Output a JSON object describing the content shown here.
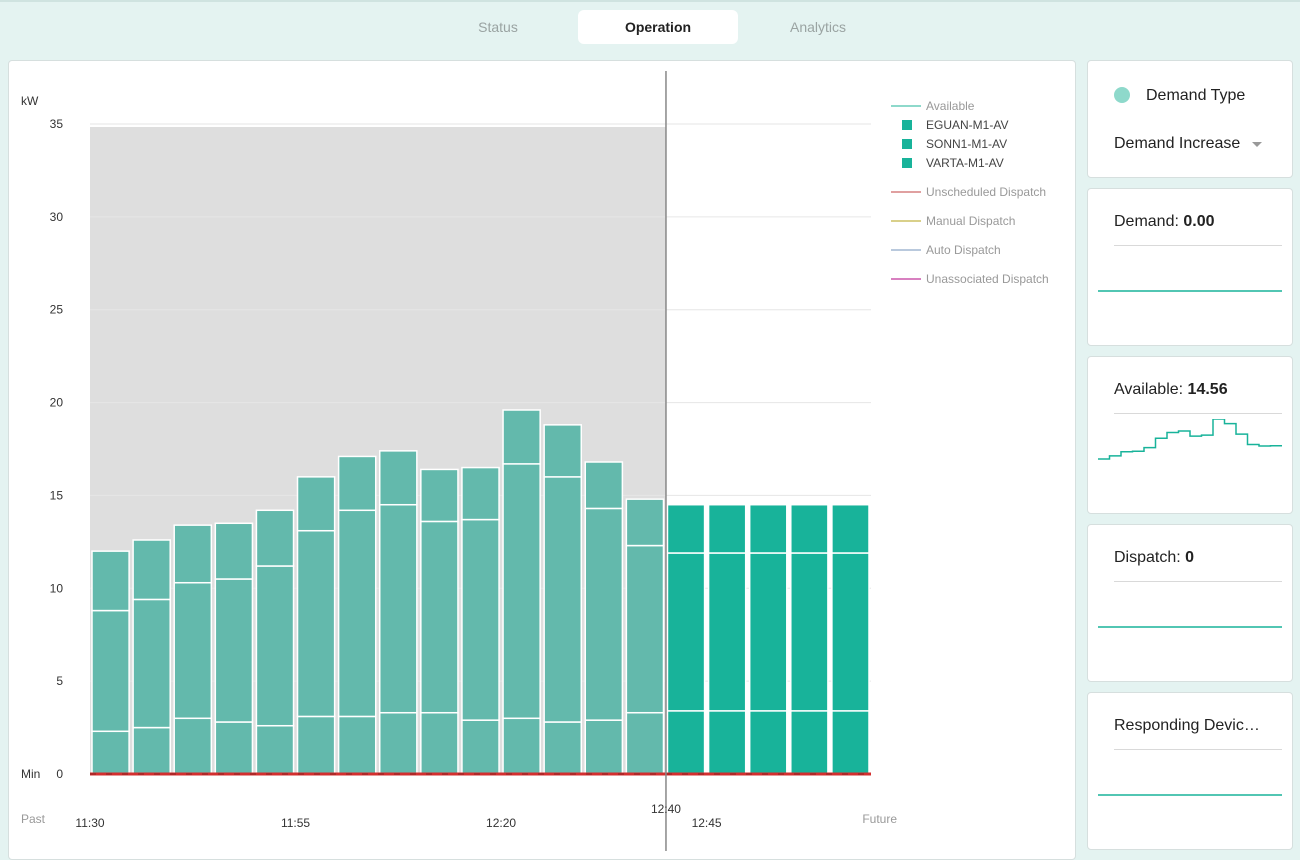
{
  "tabs": [
    {
      "label": "Status"
    },
    {
      "label": "Operation"
    },
    {
      "label": "Analytics"
    }
  ],
  "active_tab": "Operation",
  "chart_data": {
    "type": "bar",
    "stacked": true,
    "ylabel": "kW",
    "ylim": [
      0,
      35
    ],
    "yticks": [
      0,
      5,
      10,
      15,
      20,
      25,
      30,
      35
    ],
    "min_label": "Min",
    "x_labels": [
      "11:30",
      "11:55",
      "12:20",
      "12:40",
      "12:45"
    ],
    "past_label": "Past",
    "future_label": "Future",
    "now_time": "12:40",
    "grid": true,
    "legend_position": "right",
    "legend": [
      {
        "label": "Available",
        "kind": "line",
        "color": "#8ed9cb"
      },
      {
        "label": "EGUAN-M1-AV",
        "kind": "square",
        "color": "#18b39a"
      },
      {
        "label": "SONN1-M1-AV",
        "kind": "square",
        "color": "#18b39a"
      },
      {
        "label": "VARTA-M1-AV",
        "kind": "square",
        "color": "#18b39a"
      },
      {
        "label": "Unscheduled Dispatch",
        "kind": "line",
        "color": "#e0a0a0"
      },
      {
        "label": "Manual Dispatch",
        "kind": "line",
        "color": "#d9d08a"
      },
      {
        "label": "Auto Dispatch",
        "kind": "line",
        "color": "#b9c9dd"
      },
      {
        "label": "Unassociated Dispatch",
        "kind": "line",
        "color": "#d880c0"
      }
    ],
    "past_series_color": "#63b9ac",
    "future_series_color": "#18b39a",
    "past_shade_color": "#dedede",
    "dispatch_line_color": "#d32f2f",
    "series_order": [
      "EGUAN-M1-AV",
      "SONN1-M1-AV",
      "VARTA-M1-AV"
    ],
    "bars": [
      {
        "period": "past",
        "segments": [
          2.3,
          6.5,
          3.2
        ]
      },
      {
        "period": "past",
        "segments": [
          2.5,
          6.9,
          3.2
        ]
      },
      {
        "period": "past",
        "segments": [
          3.0,
          7.3,
          3.1
        ]
      },
      {
        "period": "past",
        "segments": [
          2.8,
          7.7,
          3.0
        ]
      },
      {
        "period": "past",
        "segments": [
          2.6,
          8.6,
          3.0
        ]
      },
      {
        "period": "past",
        "segments": [
          3.1,
          10.0,
          2.9
        ]
      },
      {
        "period": "past",
        "segments": [
          3.1,
          11.1,
          2.9
        ]
      },
      {
        "period": "past",
        "segments": [
          3.3,
          11.2,
          2.9
        ]
      },
      {
        "period": "past",
        "segments": [
          3.3,
          10.3,
          2.8
        ]
      },
      {
        "period": "past",
        "segments": [
          2.9,
          10.8,
          2.8
        ]
      },
      {
        "period": "past",
        "segments": [
          3.0,
          13.7,
          2.9
        ]
      },
      {
        "period": "past",
        "segments": [
          2.8,
          13.2,
          2.8
        ]
      },
      {
        "period": "past",
        "segments": [
          2.9,
          11.4,
          2.5
        ]
      },
      {
        "period": "past",
        "segments": [
          3.3,
          9.0,
          2.5
        ]
      },
      {
        "period": "future",
        "segments": [
          3.4,
          8.5,
          2.6
        ]
      },
      {
        "period": "future",
        "segments": [
          3.4,
          8.5,
          2.6
        ]
      },
      {
        "period": "future",
        "segments": [
          3.4,
          8.5,
          2.6
        ]
      },
      {
        "period": "future",
        "segments": [
          3.4,
          8.5,
          2.6
        ]
      },
      {
        "period": "future",
        "segments": [
          3.4,
          8.5,
          2.6
        ]
      }
    ],
    "dispatch_values": [
      0,
      0,
      0,
      0,
      0,
      0,
      0,
      0,
      0,
      0,
      0,
      0,
      0,
      0,
      0,
      0,
      0,
      0,
      0
    ]
  },
  "side": {
    "demand_type": {
      "label": "Demand Type",
      "selected": "Demand Increase",
      "dot_color": "#8ed9cb"
    },
    "demand": {
      "label": "Demand:",
      "value": "0.00",
      "spark": [
        0,
        0,
        0,
        0,
        0,
        0,
        0,
        0,
        0,
        0
      ]
    },
    "available": {
      "label": "Available:",
      "value": "14.56",
      "spark": [
        12.0,
        12.6,
        13.4,
        13.5,
        14.2,
        16.0,
        17.1,
        17.4,
        16.4,
        16.6,
        19.7,
        18.8,
        16.8,
        14.8,
        14.5,
        14.56
      ]
    },
    "dispatch": {
      "label": "Dispatch:",
      "value": "0",
      "spark": [
        0,
        0,
        0,
        0,
        0,
        0,
        0,
        0,
        0,
        0
      ]
    },
    "responding": {
      "label": "Responding Devic…",
      "spark": [
        0,
        0,
        0,
        0,
        0,
        0,
        0,
        0,
        0,
        0
      ]
    },
    "spark_color": "#18b39a"
  }
}
